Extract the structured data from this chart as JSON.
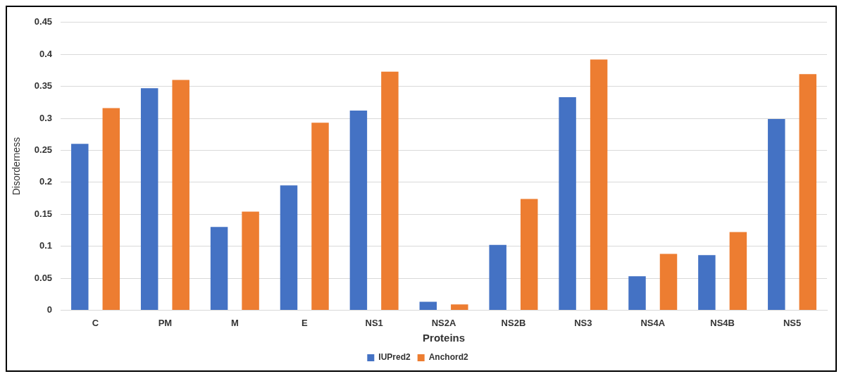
{
  "chart_data": {
    "type": "bar",
    "xlabel": "Proteins",
    "ylabel": "Disorderness",
    "categories": [
      "C",
      "PM",
      "M",
      "E",
      "NS1",
      "NS2A",
      "NS2B",
      "NS3",
      "NS4A",
      "NS4B",
      "NS5"
    ],
    "series": [
      {
        "name": "IUPred2",
        "color": "#4472c4",
        "values": [
          0.26,
          0.347,
          0.13,
          0.195,
          0.312,
          0.013,
          0.102,
          0.333,
          0.053,
          0.086,
          0.299
        ]
      },
      {
        "name": "Anchord2",
        "color": "#ed7d31",
        "values": [
          0.316,
          0.36,
          0.154,
          0.293,
          0.373,
          0.009,
          0.174,
          0.392,
          0.088,
          0.122,
          0.369
        ]
      }
    ],
    "ylim": [
      0,
      0.45
    ],
    "yticks": [
      0,
      0.05,
      0.1,
      0.15,
      0.2,
      0.25,
      0.3,
      0.35,
      0.4,
      0.45
    ],
    "grid": "y",
    "legend": "bottom"
  }
}
